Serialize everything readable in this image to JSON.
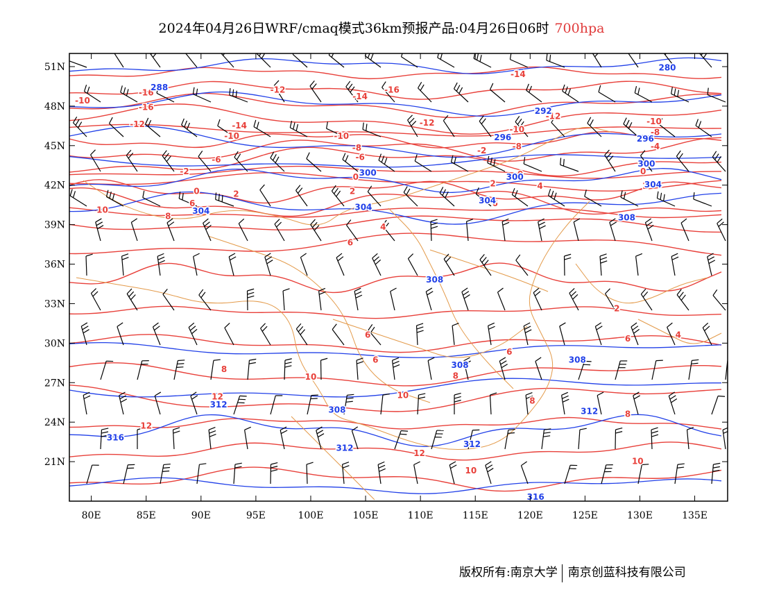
{
  "title": {
    "main": "2024年04月26日WRF/cmaq模式36km预报产品:04月26日06时",
    "level": "700hpa"
  },
  "footer": {
    "rights": "版权所有:南京大学",
    "company": "南京创蓝科技有限公司"
  },
  "colors": {
    "temperature": "#e8403a",
    "geopotential": "#2140e8",
    "border": "#e39a4a",
    "wind": "#000000",
    "title_level": "#e03a3a"
  },
  "map": {
    "lon_range": [
      78,
      138
    ],
    "lat_range": [
      18,
      52
    ],
    "lon_ticks": [
      "80E",
      "85E",
      "90E",
      "95E",
      "100E",
      "105E",
      "110E",
      "115E",
      "120E",
      "125E",
      "130E",
      "135E"
    ],
    "lat_ticks": [
      "51N",
      "48N",
      "45N",
      "42N",
      "39N",
      "36N",
      "33N",
      "30N",
      "27N",
      "24N",
      "21N"
    ],
    "geopotential_contours": [
      {
        "label": "280",
        "lon": 132.5,
        "lat": 50.9
      },
      {
        "label": "288",
        "lon": 86.2,
        "lat": 49.4
      },
      {
        "label": "292",
        "lon": 121.2,
        "lat": 47.6
      },
      {
        "label": "296",
        "lon": 117.5,
        "lat": 45.6
      },
      {
        "label": "296",
        "lon": 130.5,
        "lat": 45.5
      },
      {
        "label": "300",
        "lon": 130.6,
        "lat": 43.6
      },
      {
        "label": "300",
        "lon": 105.2,
        "lat": 42.9
      },
      {
        "label": "300",
        "lon": 118.6,
        "lat": 42.6
      },
      {
        "label": "304",
        "lon": 90.0,
        "lat": 40.0
      },
      {
        "label": "304",
        "lon": 104.8,
        "lat": 40.3
      },
      {
        "label": "304",
        "lon": 116.1,
        "lat": 40.8
      },
      {
        "label": "304",
        "lon": 131.2,
        "lat": 42.0
      },
      {
        "label": "308",
        "lon": 128.8,
        "lat": 39.5
      },
      {
        "label": "308",
        "lon": 111.3,
        "lat": 34.8
      },
      {
        "label": "308",
        "lon": 113.6,
        "lat": 28.3
      },
      {
        "label": "308",
        "lon": 124.3,
        "lat": 28.7
      },
      {
        "label": "308",
        "lon": 102.4,
        "lat": 24.9
      },
      {
        "label": "312",
        "lon": 91.6,
        "lat": 25.3
      },
      {
        "label": "312",
        "lon": 103.1,
        "lat": 22.0
      },
      {
        "label": "312",
        "lon": 114.7,
        "lat": 22.3
      },
      {
        "label": "312",
        "lon": 125.4,
        "lat": 24.8
      },
      {
        "label": "316",
        "lon": 82.2,
        "lat": 22.8
      },
      {
        "label": "316",
        "lon": 120.5,
        "lat": 18.3
      }
    ],
    "temperature_contours": [
      {
        "label": "-10",
        "lon": 79.2,
        "lat": 48.4
      },
      {
        "label": "-16",
        "lon": 85.0,
        "lat": 49.0
      },
      {
        "label": "-16",
        "lon": 85.0,
        "lat": 47.9
      },
      {
        "label": "-12",
        "lon": 84.2,
        "lat": 46.6
      },
      {
        "label": "-12",
        "lon": 97.0,
        "lat": 49.2
      },
      {
        "label": "-14",
        "lon": 93.5,
        "lat": 46.5
      },
      {
        "label": "-10",
        "lon": 92.8,
        "lat": 45.7
      },
      {
        "label": "-6",
        "lon": 91.4,
        "lat": 43.9
      },
      {
        "label": "-2",
        "lon": 88.5,
        "lat": 43.0
      },
      {
        "label": "0",
        "lon": 89.6,
        "lat": 41.5
      },
      {
        "label": "2",
        "lon": 93.2,
        "lat": 41.3
      },
      {
        "label": "6",
        "lon": 89.2,
        "lat": 40.6
      },
      {
        "label": "8",
        "lon": 87.0,
        "lat": 39.6
      },
      {
        "label": "10",
        "lon": 81.0,
        "lat": 40.1
      },
      {
        "label": "-14",
        "lon": 104.5,
        "lat": 48.7
      },
      {
        "label": "-16",
        "lon": 107.4,
        "lat": 49.2
      },
      {
        "label": "-12",
        "lon": 110.6,
        "lat": 46.7
      },
      {
        "label": "-10",
        "lon": 102.8,
        "lat": 45.7
      },
      {
        "label": "-8",
        "lon": 104.2,
        "lat": 44.8
      },
      {
        "label": "-6",
        "lon": 104.5,
        "lat": 44.1
      },
      {
        "label": "0",
        "lon": 104.1,
        "lat": 42.6
      },
      {
        "label": "2",
        "lon": 103.8,
        "lat": 41.5
      },
      {
        "label": "-14",
        "lon": 118.9,
        "lat": 50.4
      },
      {
        "label": "-12",
        "lon": 122.1,
        "lat": 47.2
      },
      {
        "label": "-10",
        "lon": 118.8,
        "lat": 46.2
      },
      {
        "label": "-8",
        "lon": 118.8,
        "lat": 44.9
      },
      {
        "label": "-2",
        "lon": 115.6,
        "lat": 44.6
      },
      {
        "label": "0",
        "lon": 119.1,
        "lat": 42.8
      },
      {
        "label": "2",
        "lon": 116.6,
        "lat": 42.1
      },
      {
        "label": "4",
        "lon": 120.9,
        "lat": 41.9
      },
      {
        "label": "6",
        "lon": 116.8,
        "lat": 40.6
      },
      {
        "label": "-10",
        "lon": 131.3,
        "lat": 46.8
      },
      {
        "label": "-8",
        "lon": 131.4,
        "lat": 46.0
      },
      {
        "label": "-4",
        "lon": 131.4,
        "lat": 44.9
      },
      {
        "label": "0",
        "lon": 130.3,
        "lat": 43.0
      },
      {
        "label": "2",
        "lon": 130.5,
        "lat": 41.9
      },
      {
        "label": "4",
        "lon": 106.6,
        "lat": 38.8
      },
      {
        "label": "6",
        "lon": 103.6,
        "lat": 37.6
      },
      {
        "label": "2",
        "lon": 127.9,
        "lat": 32.6
      },
      {
        "label": "4",
        "lon": 133.5,
        "lat": 30.6
      },
      {
        "label": "6",
        "lon": 128.9,
        "lat": 30.3
      },
      {
        "label": "6",
        "lon": 105.2,
        "lat": 30.6
      },
      {
        "label": "6",
        "lon": 105.9,
        "lat": 28.7
      },
      {
        "label": "6",
        "lon": 118.1,
        "lat": 29.3
      },
      {
        "label": "8",
        "lon": 92.1,
        "lat": 28.0
      },
      {
        "label": "8",
        "lon": 113.2,
        "lat": 27.5
      },
      {
        "label": "8",
        "lon": 120.2,
        "lat": 25.6
      },
      {
        "label": "8",
        "lon": 128.9,
        "lat": 24.6
      },
      {
        "label": "10",
        "lon": 100.0,
        "lat": 27.4
      },
      {
        "label": "10",
        "lon": 108.4,
        "lat": 26.0
      },
      {
        "label": "10",
        "lon": 114.6,
        "lat": 20.3
      },
      {
        "label": "10",
        "lon": 129.8,
        "lat": 21.0
      },
      {
        "label": "12",
        "lon": 85.0,
        "lat": 23.7
      },
      {
        "label": "12",
        "lon": 91.5,
        "lat": 25.9
      },
      {
        "label": "12",
        "lon": 109.9,
        "lat": 21.6
      }
    ]
  }
}
